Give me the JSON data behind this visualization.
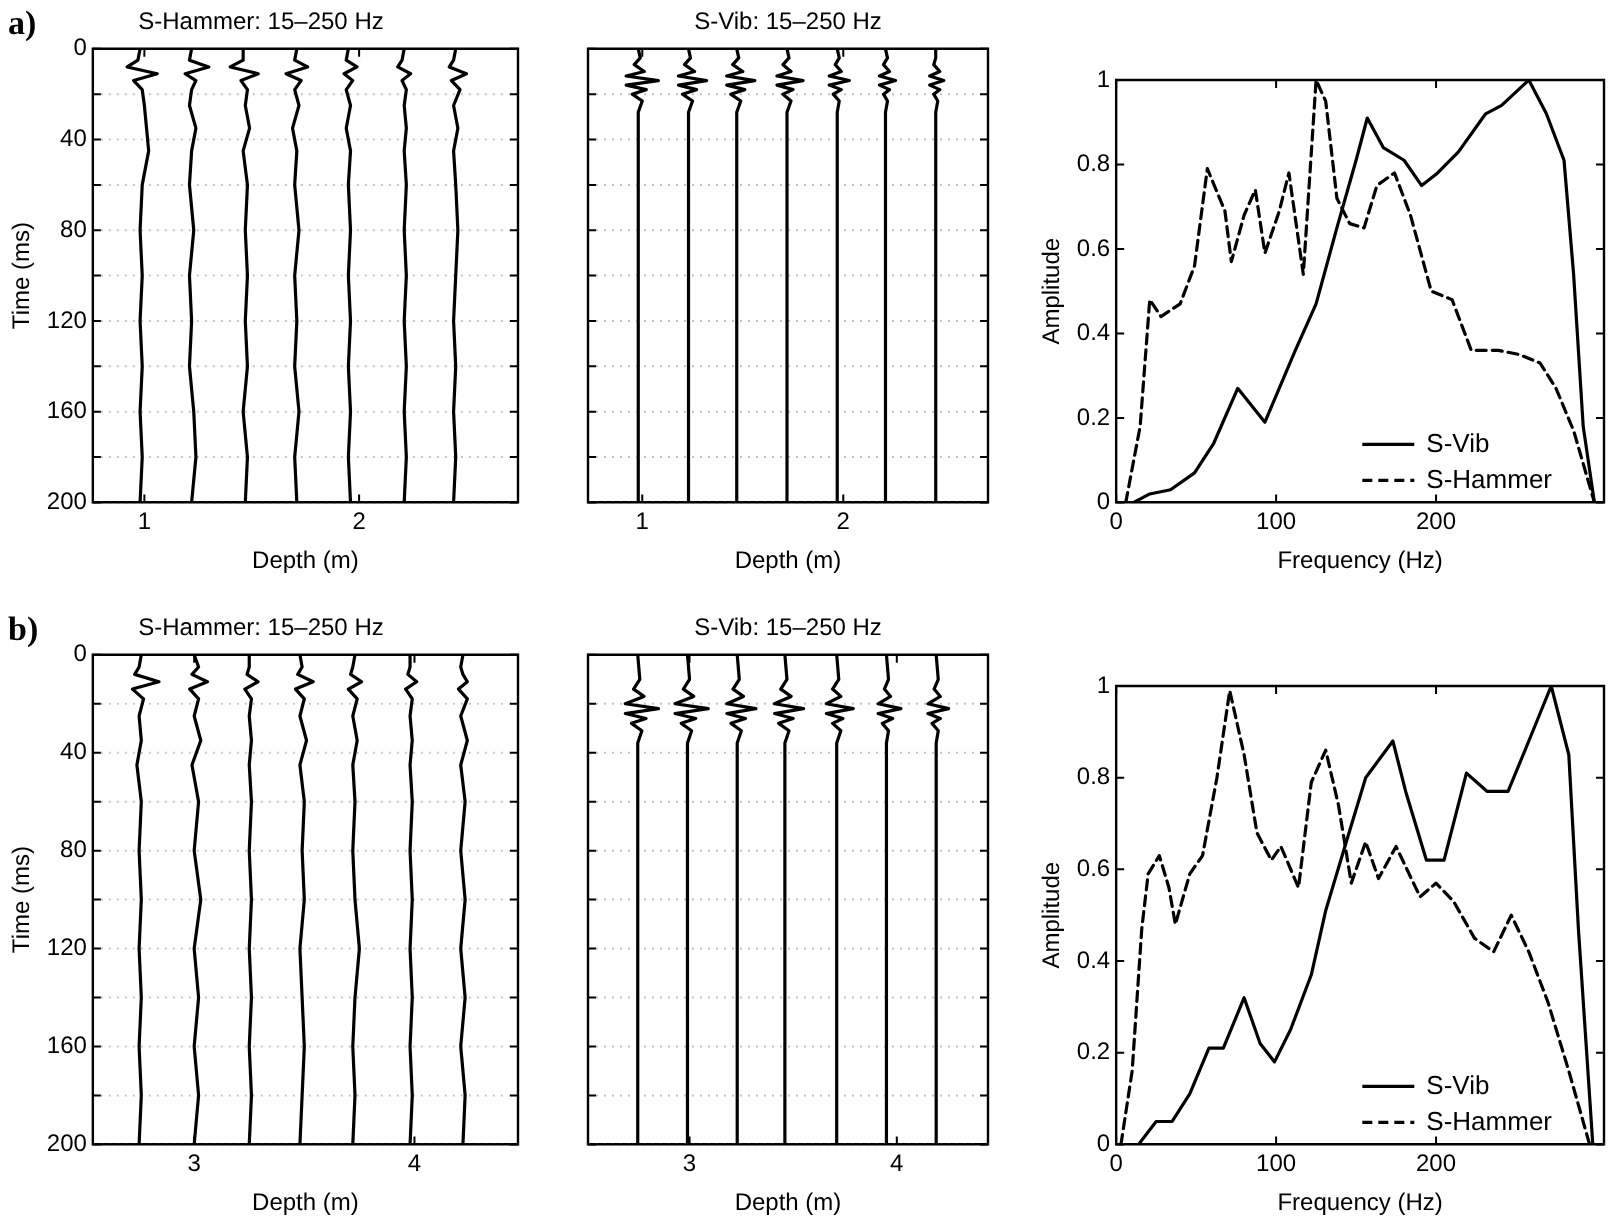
{
  "chart_data": [
    {
      "type": "line",
      "title": "S-Hammer: 15–250 Hz",
      "xlabel": "Depth (m)",
      "ylabel": "Time (ms)",
      "annotations": [
        "a)"
      ],
      "xlim": [
        0.76,
        2.74
      ],
      "xticks": [
        1,
        2
      ],
      "ylim": [
        200,
        0
      ],
      "yticks": [
        0,
        {
          "value": 20,
          "label": null
        },
        40,
        {
          "value": 60,
          "label": null
        },
        80,
        {
          "value": 100,
          "label": null
        },
        120,
        {
          "value": 140,
          "label": null
        },
        160,
        {
          "value": 180,
          "label": null
        },
        200
      ],
      "grid": "y",
      "series": [
        {
          "color": "#000000",
          "x": [
            0.98,
            0.97,
            0.92,
            1.06,
            0.95,
            0.99,
            1.0,
            1.01,
            1.02,
            0.99,
            0.98,
            0.99,
            0.98,
            0.99,
            0.98,
            0.99,
            0.98
          ],
          "values": [
            0,
            5,
            8,
            11,
            14,
            18,
            25,
            35,
            45,
            60,
            80,
            100,
            120,
            140,
            160,
            180,
            200
          ]
        },
        {
          "color": "#000000",
          "x": [
            1.22,
            1.21,
            1.3,
            1.19,
            1.24,
            1.22,
            1.21,
            1.24,
            1.22,
            1.21,
            1.23,
            1.21,
            1.22,
            1.21,
            1.23,
            1.24,
            1.22
          ],
          "values": [
            0,
            5,
            8,
            11,
            14,
            18,
            25,
            35,
            45,
            60,
            80,
            100,
            120,
            140,
            160,
            180,
            200
          ]
        },
        {
          "color": "#000000",
          "x": [
            1.46,
            1.46,
            1.4,
            1.53,
            1.45,
            1.48,
            1.47,
            1.49,
            1.46,
            1.48,
            1.47,
            1.48,
            1.47,
            1.48,
            1.46,
            1.48,
            1.47
          ],
          "values": [
            0,
            5,
            8,
            11,
            14,
            18,
            25,
            35,
            45,
            60,
            80,
            100,
            120,
            140,
            160,
            180,
            200
          ]
        },
        {
          "color": "#000000",
          "x": [
            1.71,
            1.7,
            1.76,
            1.66,
            1.73,
            1.7,
            1.72,
            1.69,
            1.71,
            1.7,
            1.72,
            1.7,
            1.71,
            1.7,
            1.72,
            1.7,
            1.71
          ],
          "values": [
            0,
            5,
            8,
            11,
            14,
            18,
            25,
            35,
            45,
            60,
            80,
            100,
            120,
            140,
            160,
            180,
            200
          ]
        },
        {
          "color": "#000000",
          "x": [
            1.95,
            1.94,
            1.99,
            1.93,
            1.97,
            1.94,
            1.96,
            1.94,
            1.96,
            1.95,
            1.96,
            1.95,
            1.96,
            1.95,
            1.96,
            1.95,
            1.96
          ],
          "values": [
            0,
            5,
            8,
            11,
            14,
            18,
            25,
            35,
            45,
            60,
            80,
            100,
            120,
            140,
            160,
            180,
            200
          ]
        },
        {
          "color": "#000000",
          "x": [
            2.21,
            2.2,
            2.18,
            2.24,
            2.2,
            2.22,
            2.21,
            2.22,
            2.21,
            2.22,
            2.21,
            2.22,
            2.21,
            2.22,
            2.21,
            2.22,
            2.21
          ],
          "values": [
            0,
            5,
            8,
            11,
            14,
            18,
            25,
            35,
            45,
            60,
            80,
            100,
            120,
            140,
            160,
            180,
            200
          ]
        },
        {
          "color": "#000000",
          "x": [
            2.45,
            2.44,
            2.42,
            2.5,
            2.43,
            2.47,
            2.44,
            2.46,
            2.44,
            2.45,
            2.46,
            2.45,
            2.44,
            2.45,
            2.44,
            2.45,
            2.44
          ],
          "values": [
            0,
            5,
            8,
            11,
            14,
            18,
            25,
            35,
            45,
            60,
            80,
            100,
            120,
            140,
            160,
            180,
            200
          ]
        }
      ]
    },
    {
      "type": "line",
      "title": "S-Vib: 15–250 Hz",
      "xlabel": "Depth (m)",
      "tick_labels": "x",
      "xlim": [
        0.73,
        2.72
      ],
      "xticks": [
        1,
        2
      ],
      "ylim": [
        200,
        0
      ],
      "yticks": [
        0,
        {
          "value": 20,
          "label": null
        },
        {
          "value": 40,
          "label": null
        },
        {
          "value": 60,
          "label": null
        },
        {
          "value": 80,
          "label": null
        },
        {
          "value": 100,
          "label": null
        },
        {
          "value": 120,
          "label": null
        },
        {
          "value": 140,
          "label": null
        },
        {
          "value": 160,
          "label": null
        },
        {
          "value": 180,
          "label": null
        },
        200
      ],
      "grid": "y",
      "series": [
        {
          "color": "#000000",
          "x": [
            0.98,
            0.99,
            0.96,
            1.01,
            0.92,
            1.08,
            0.92,
            1.02,
            0.95,
            1.0,
            0.98,
            0.98
          ],
          "values": [
            0,
            4,
            7,
            10,
            12,
            14,
            16,
            18,
            20,
            23,
            28,
            200
          ]
        },
        {
          "color": "#000000",
          "x": [
            1.23,
            1.24,
            1.21,
            1.26,
            1.18,
            1.32,
            1.18,
            1.27,
            1.2,
            1.25,
            1.23,
            1.23
          ],
          "values": [
            0,
            4,
            7,
            10,
            12,
            14,
            16,
            18,
            20,
            23,
            28,
            200
          ]
        },
        {
          "color": "#000000",
          "x": [
            1.47,
            1.48,
            1.45,
            1.5,
            1.42,
            1.56,
            1.42,
            1.51,
            1.44,
            1.49,
            1.47,
            1.47
          ],
          "values": [
            0,
            4,
            7,
            10,
            12,
            14,
            16,
            18,
            20,
            23,
            28,
            200
          ]
        },
        {
          "color": "#000000",
          "x": [
            1.72,
            1.73,
            1.7,
            1.74,
            1.67,
            1.8,
            1.67,
            1.75,
            1.7,
            1.74,
            1.72,
            1.72
          ],
          "values": [
            0,
            4,
            7,
            10,
            12,
            14,
            16,
            18,
            20,
            23,
            28,
            200
          ]
        },
        {
          "color": "#000000",
          "x": [
            1.97,
            1.98,
            1.96,
            1.99,
            1.93,
            2.03,
            1.93,
            1.99,
            1.95,
            1.98,
            1.97,
            1.97
          ],
          "values": [
            0,
            4,
            7,
            10,
            12,
            14,
            16,
            18,
            20,
            23,
            28,
            200
          ]
        },
        {
          "color": "#000000",
          "x": [
            2.21,
            2.22,
            2.2,
            2.23,
            2.18,
            2.26,
            2.18,
            2.23,
            2.2,
            2.22,
            2.21,
            2.21
          ],
          "values": [
            0,
            4,
            7,
            10,
            12,
            14,
            16,
            18,
            20,
            23,
            28,
            200
          ]
        },
        {
          "color": "#000000",
          "x": [
            2.46,
            2.46,
            2.45,
            2.48,
            2.43,
            2.5,
            2.43,
            2.48,
            2.45,
            2.47,
            2.46,
            2.46
          ],
          "values": [
            0,
            4,
            7,
            10,
            12,
            14,
            16,
            18,
            20,
            23,
            28,
            200
          ]
        }
      ]
    },
    {
      "type": "line",
      "xlabel": "Frequency (Hz)",
      "ylabel": "Amplitude",
      "xlim": [
        0,
        305
      ],
      "xticks": [
        0,
        100,
        200
      ],
      "ylim": [
        0,
        1
      ],
      "yticks": [
        0,
        0.2,
        0.4,
        0.6,
        0.8,
        1
      ],
      "legend": "bottom right",
      "series": [
        {
          "name": "S-Vib",
          "color": "#000000",
          "line_style": "solid",
          "x": [
            11,
            21,
            34,
            49,
            61,
            76,
            93,
            112,
            125,
            138,
            150,
            157,
            167,
            180,
            191,
            201,
            214,
            231,
            241,
            258,
            269,
            280,
            286,
            292,
            299
          ],
          "values": [
            0,
            0.02,
            0.03,
            0.07,
            0.14,
            0.27,
            0.19,
            0.36,
            0.47,
            0.65,
            0.81,
            0.91,
            0.84,
            0.81,
            0.75,
            0.78,
            0.83,
            0.92,
            0.94,
            1,
            0.92,
            0.81,
            0.54,
            0.18,
            0
          ]
        },
        {
          "name": "S-Hammer",
          "color": "#000000",
          "line_style": "dashed",
          "x": [
            6,
            15,
            21,
            28,
            40,
            49,
            57,
            68,
            72,
            80,
            87,
            93,
            102,
            108,
            117,
            125,
            131,
            138,
            146,
            155,
            163,
            174,
            184,
            197,
            210,
            222,
            239,
            252,
            265,
            275,
            286,
            299
          ],
          "values": [
            0,
            0.18,
            0.48,
            0.44,
            0.47,
            0.56,
            0.79,
            0.69,
            0.57,
            0.68,
            0.74,
            0.59,
            0.69,
            0.78,
            0.54,
            1,
            0.95,
            0.72,
            0.66,
            0.65,
            0.75,
            0.78,
            0.68,
            0.5,
            0.48,
            0.36,
            0.36,
            0.35,
            0.33,
            0.27,
            0.17,
            0
          ]
        }
      ]
    },
    {
      "type": "line",
      "title": "S-Hammer: 15–250 Hz",
      "xlabel": "Depth (m)",
      "ylabel": "Time (ms)",
      "annotations": [
        "b)"
      ],
      "xlim": [
        2.54,
        4.47
      ],
      "xticks": [
        3,
        4
      ],
      "ylim": [
        200,
        0
      ],
      "yticks": [
        0,
        {
          "value": 20,
          "label": null
        },
        40,
        {
          "value": 60,
          "label": null
        },
        80,
        {
          "value": 100,
          "label": null
        },
        120,
        {
          "value": 140,
          "label": null
        },
        160,
        {
          "value": 180,
          "label": null
        },
        200
      ],
      "grid": "y",
      "series": [
        {
          "color": "#000000",
          "x": [
            2.76,
            2.75,
            2.73,
            2.84,
            2.72,
            2.77,
            2.75,
            2.76,
            2.74,
            2.76,
            2.75,
            2.76,
            2.75,
            2.76,
            2.75,
            2.76,
            2.75
          ],
          "values": [
            0,
            5,
            8,
            11,
            14,
            18,
            25,
            35,
            45,
            60,
            80,
            100,
            120,
            140,
            160,
            180,
            200
          ]
        },
        {
          "color": "#000000",
          "x": [
            3.0,
            3.02,
            2.99,
            3.06,
            2.98,
            3.02,
            3.0,
            3.03,
            2.99,
            3.02,
            3.0,
            3.03,
            3.0,
            3.02,
            3.0,
            3.02,
            3.0
          ],
          "values": [
            0,
            5,
            8,
            11,
            14,
            18,
            25,
            35,
            45,
            60,
            80,
            100,
            120,
            140,
            160,
            180,
            200
          ]
        },
        {
          "color": "#000000",
          "x": [
            3.25,
            3.25,
            3.24,
            3.29,
            3.23,
            3.26,
            3.25,
            3.26,
            3.25,
            3.26,
            3.25,
            3.26,
            3.25,
            3.26,
            3.25,
            3.26,
            3.25
          ],
          "values": [
            0,
            5,
            8,
            11,
            14,
            18,
            25,
            35,
            45,
            60,
            80,
            100,
            120,
            140,
            160,
            180,
            200
          ]
        },
        {
          "color": "#000000",
          "x": [
            3.48,
            3.49,
            3.47,
            3.54,
            3.46,
            3.5,
            3.48,
            3.51,
            3.48,
            3.5,
            3.49,
            3.5,
            3.48,
            3.49,
            3.5,
            3.49,
            3.48
          ],
          "values": [
            0,
            5,
            8,
            11,
            14,
            18,
            25,
            35,
            45,
            60,
            80,
            100,
            120,
            140,
            160,
            180,
            200
          ]
        },
        {
          "color": "#000000",
          "x": [
            3.73,
            3.72,
            3.71,
            3.76,
            3.7,
            3.74,
            3.72,
            3.74,
            3.72,
            3.73,
            3.72,
            3.73,
            3.75,
            3.73,
            3.72,
            3.73,
            3.72
          ],
          "values": [
            0,
            5,
            8,
            11,
            14,
            18,
            25,
            35,
            45,
            60,
            80,
            100,
            120,
            140,
            160,
            180,
            200
          ]
        },
        {
          "color": "#000000",
          "x": [
            3.98,
            3.98,
            3.97,
            4.01,
            3.96,
            3.99,
            3.98,
            3.99,
            3.98,
            3.99,
            3.98,
            3.99,
            3.98,
            3.99,
            3.98,
            3.99,
            3.98
          ],
          "values": [
            0,
            5,
            8,
            11,
            14,
            18,
            25,
            35,
            45,
            60,
            80,
            100,
            120,
            140,
            160,
            180,
            200
          ]
        },
        {
          "color": "#000000",
          "x": [
            4.22,
            4.21,
            4.22,
            4.24,
            4.2,
            4.24,
            4.21,
            4.24,
            4.21,
            4.23,
            4.21,
            4.23,
            4.21,
            4.23,
            4.21,
            4.23,
            4.22
          ],
          "values": [
            0,
            5,
            8,
            11,
            14,
            18,
            25,
            35,
            45,
            60,
            80,
            100,
            120,
            140,
            160,
            180,
            200
          ]
        }
      ]
    },
    {
      "type": "line",
      "title": "S-Vib: 15–250 Hz",
      "xlabel": "Depth (m)",
      "tick_labels": "x",
      "xlim": [
        2.51,
        4.44
      ],
      "xticks": [
        3,
        4
      ],
      "ylim": [
        200,
        0
      ],
      "yticks": [
        0,
        {
          "value": 20,
          "label": null
        },
        {
          "value": 40,
          "label": null
        },
        {
          "value": 60,
          "label": null
        },
        {
          "value": 80,
          "label": null
        },
        {
          "value": 100,
          "label": null
        },
        {
          "value": 120,
          "label": null
        },
        {
          "value": 140,
          "label": null
        },
        {
          "value": 160,
          "label": null
        },
        {
          "value": 180,
          "label": null
        },
        200
      ],
      "grid": "y",
      "series": [
        {
          "color": "#000000",
          "x": [
            2.75,
            2.76,
            2.73,
            2.78,
            2.69,
            2.85,
            2.69,
            2.79,
            2.72,
            2.77,
            2.75,
            2.75
          ],
          "values": [
            0,
            10,
            14,
            17,
            20,
            22,
            24,
            26,
            28,
            31,
            36,
            200
          ]
        },
        {
          "color": "#000000",
          "x": [
            2.99,
            3.0,
            2.97,
            3.02,
            2.93,
            3.09,
            2.93,
            3.03,
            2.96,
            3.01,
            2.99,
            2.99
          ],
          "values": [
            0,
            10,
            14,
            17,
            20,
            22,
            24,
            26,
            28,
            31,
            36,
            200
          ]
        },
        {
          "color": "#000000",
          "x": [
            3.23,
            3.24,
            3.21,
            3.26,
            3.18,
            3.32,
            3.18,
            3.27,
            3.2,
            3.25,
            3.23,
            3.23
          ],
          "values": [
            0,
            10,
            14,
            17,
            20,
            22,
            24,
            26,
            28,
            31,
            36,
            200
          ]
        },
        {
          "color": "#000000",
          "x": [
            3.46,
            3.47,
            3.44,
            3.49,
            3.41,
            3.55,
            3.41,
            3.5,
            3.43,
            3.48,
            3.46,
            3.46
          ],
          "values": [
            0,
            10,
            14,
            17,
            20,
            22,
            24,
            26,
            28,
            31,
            36,
            200
          ]
        },
        {
          "color": "#000000",
          "x": [
            3.71,
            3.72,
            3.69,
            3.73,
            3.66,
            3.79,
            3.66,
            3.74,
            3.69,
            3.73,
            3.71,
            3.71
          ],
          "values": [
            0,
            10,
            14,
            17,
            20,
            22,
            24,
            26,
            28,
            31,
            36,
            200
          ]
        },
        {
          "color": "#000000",
          "x": [
            3.95,
            3.96,
            3.94,
            3.97,
            3.91,
            4.02,
            3.91,
            3.98,
            3.93,
            3.96,
            3.95,
            3.95
          ],
          "values": [
            0,
            10,
            14,
            17,
            20,
            22,
            24,
            26,
            28,
            31,
            36,
            200
          ]
        },
        {
          "color": "#000000",
          "x": [
            4.19,
            4.2,
            4.18,
            4.21,
            4.15,
            4.25,
            4.15,
            4.21,
            4.17,
            4.2,
            4.19,
            4.19
          ],
          "values": [
            0,
            10,
            14,
            17,
            20,
            22,
            24,
            26,
            28,
            31,
            36,
            200
          ]
        }
      ]
    },
    {
      "type": "line",
      "xlabel": "Frequency (Hz)",
      "ylabel": "Amplitude",
      "xlim": [
        0,
        305
      ],
      "xticks": [
        0,
        100,
        200
      ],
      "ylim": [
        0,
        1
      ],
      "yticks": [
        0,
        0.2,
        0.4,
        0.6,
        0.8,
        1
      ],
      "legend": "bottom right",
      "series": [
        {
          "name": "S-Vib",
          "color": "#000000",
          "line_style": "solid",
          "x": [
            14,
            25,
            35,
            46,
            58,
            67,
            80,
            90,
            99,
            109,
            122,
            131,
            143,
            156,
            173,
            181,
            194,
            205,
            219,
            232,
            245,
            258,
            272,
            283,
            289,
            298
          ],
          "values": [
            0,
            0.05,
            0.05,
            0.11,
            0.21,
            0.21,
            0.32,
            0.22,
            0.18,
            0.25,
            0.37,
            0.51,
            0.65,
            0.8,
            0.88,
            0.77,
            0.62,
            0.62,
            0.81,
            0.77,
            0.77,
            0.88,
            1,
            0.85,
            0.47,
            0
          ]
        },
        {
          "name": "S-Hammer",
          "color": "#000000",
          "line_style": "dashed",
          "x": [
            3,
            10,
            16,
            20,
            27,
            33,
            37,
            46,
            54,
            63,
            71,
            80,
            88,
            97,
            103,
            114,
            122,
            131,
            139,
            147,
            156,
            164,
            175,
            190,
            200,
            211,
            224,
            236,
            247,
            258,
            270,
            283,
            296
          ],
          "values": [
            0,
            0.16,
            0.47,
            0.59,
            0.63,
            0.56,
            0.48,
            0.59,
            0.63,
            0.8,
            0.99,
            0.85,
            0.68,
            0.62,
            0.65,
            0.56,
            0.79,
            0.86,
            0.74,
            0.57,
            0.66,
            0.58,
            0.65,
            0.54,
            0.57,
            0.53,
            0.45,
            0.42,
            0.5,
            0.42,
            0.31,
            0.16,
            0
          ]
        }
      ]
    }
  ]
}
